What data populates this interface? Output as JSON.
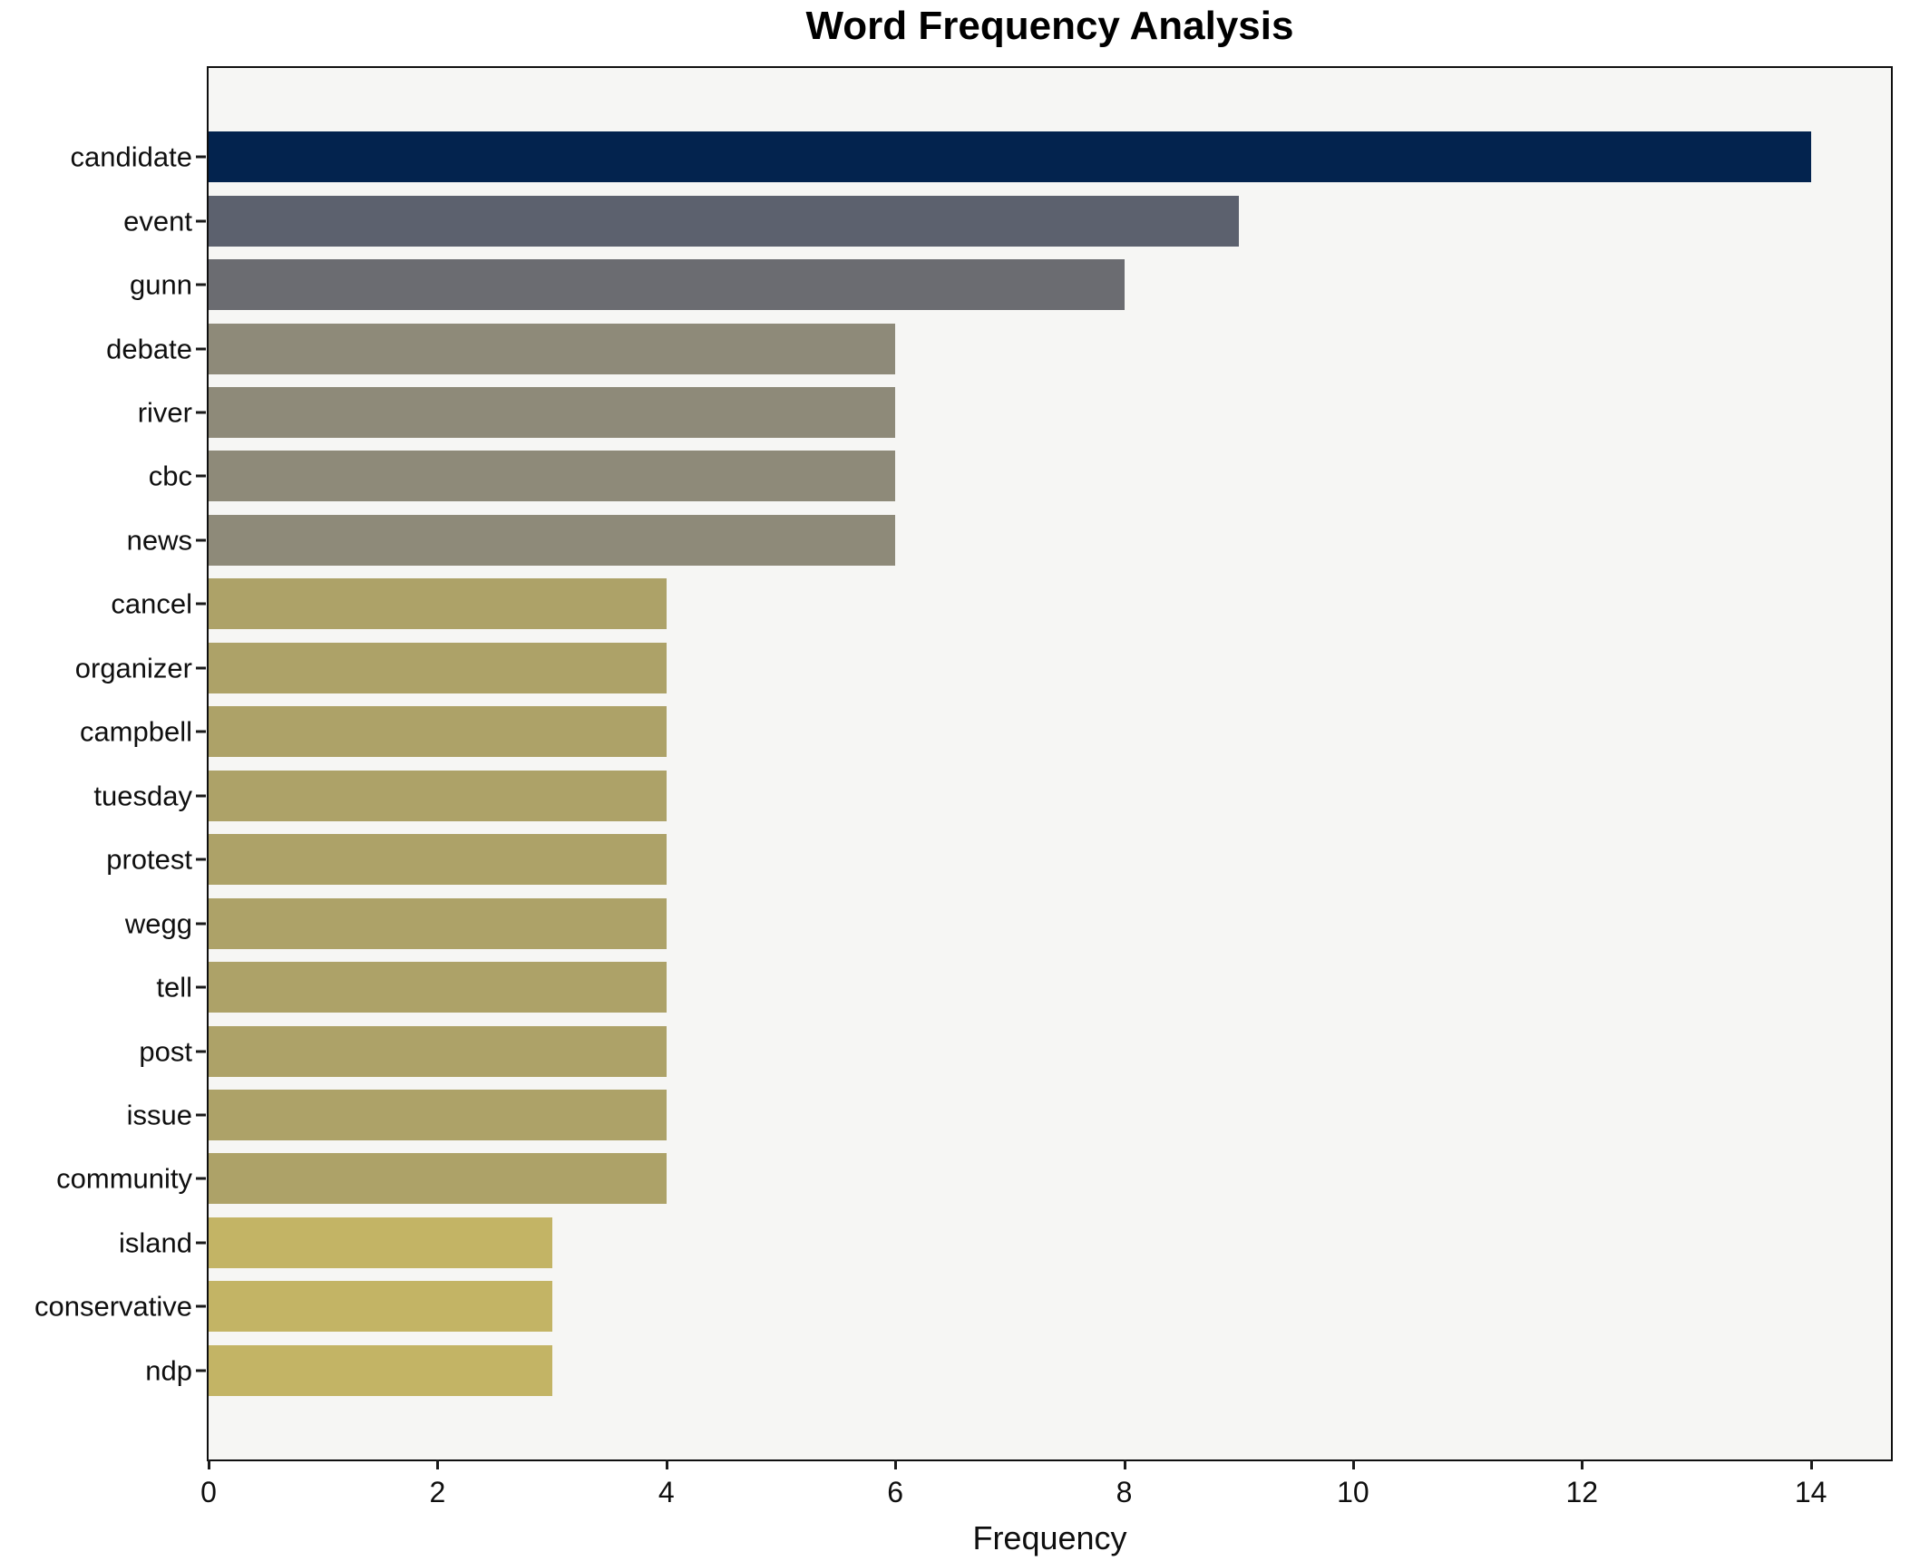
{
  "title": "Word Frequency Analysis",
  "xlabel": "Frequency",
  "chart_data": {
    "type": "bar",
    "orientation": "horizontal",
    "title": "Word Frequency Analysis",
    "xlabel": "Frequency",
    "ylabel": "",
    "grid": false,
    "legend": false,
    "plot_background": "#f6f6f4",
    "frame_color": "#0f0f0f",
    "xlim": [
      0,
      14.7
    ],
    "x_ticks": [
      0,
      2,
      4,
      6,
      8,
      10,
      12,
      14
    ],
    "categories": [
      "candidate",
      "event",
      "gunn",
      "debate",
      "river",
      "cbc",
      "news",
      "cancel",
      "organizer",
      "campbell",
      "tuesday",
      "protest",
      "wegg",
      "tell",
      "post",
      "issue",
      "community",
      "island",
      "conservative",
      "ndp"
    ],
    "values": [
      14,
      9,
      8,
      6,
      6,
      6,
      6,
      4,
      4,
      4,
      4,
      4,
      4,
      4,
      4,
      4,
      4,
      3,
      3,
      3
    ],
    "bar_colors": [
      "#03234e",
      "#5c616e",
      "#6b6c71",
      "#8e8a79",
      "#8e8a79",
      "#8e8a79",
      "#8e8a79",
      "#ada268",
      "#ada268",
      "#ada268",
      "#ada268",
      "#ada268",
      "#ada268",
      "#ada268",
      "#ada268",
      "#ada268",
      "#ada268",
      "#c3b465",
      "#c3b465",
      "#c3b465"
    ]
  }
}
